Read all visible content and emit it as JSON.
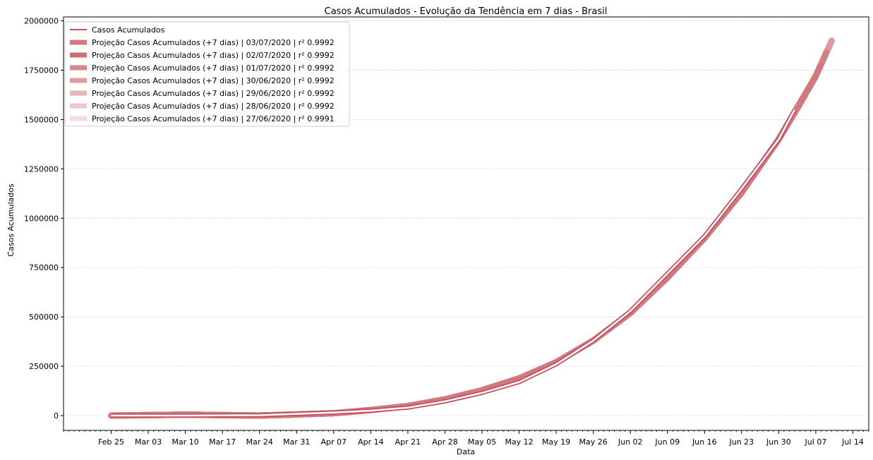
{
  "chart_data": {
    "type": "line",
    "title": "Casos Acumulados - Evolução da Tendência em 7 dias - Brasil",
    "xlabel": "Data",
    "ylabel": "Casos Acumulados",
    "xlim": [
      "2020-02-16",
      "2020-07-17"
    ],
    "ylim": [
      -75000,
      2020000
    ],
    "grid": "horizontal dashed",
    "legend_position": "top-left",
    "x_ticks": [
      "2020-02-25",
      "2020-03-03",
      "2020-03-10",
      "2020-03-17",
      "2020-03-24",
      "2020-03-31",
      "2020-04-07",
      "2020-04-14",
      "2020-04-21",
      "2020-04-28",
      "2020-05-05",
      "2020-05-12",
      "2020-05-19",
      "2020-05-26",
      "2020-06-02",
      "2020-06-09",
      "2020-06-16",
      "2020-06-23",
      "2020-06-30",
      "2020-07-07",
      "2020-07-14"
    ],
    "x_tick_labels": [
      "Feb 25",
      "Mar 03",
      "Mar 10",
      "Mar 17",
      "Mar 24",
      "Mar 31",
      "Apr 07",
      "Apr 14",
      "Apr 21",
      "Apr 28",
      "May 05",
      "May 12",
      "May 19",
      "May 26",
      "Jun 02",
      "Jun 09",
      "Jun 16",
      "Jun 23",
      "Jun 30",
      "Jul 07",
      "Jul 14"
    ],
    "y_ticks": [
      0,
      250000,
      500000,
      750000,
      1000000,
      1250000,
      1500000,
      1750000,
      2000000
    ],
    "y_tick_labels": [
      "0",
      "250000",
      "500000",
      "750000",
      "1000000",
      "1250000",
      "1500000",
      "1750000",
      "2000000"
    ],
    "series": [
      {
        "name": "Casos Acumulados",
        "color": "#c0505a",
        "x": [
          "2020-02-25",
          "2020-03-10",
          "2020-03-24",
          "2020-04-07",
          "2020-04-14",
          "2020-04-21",
          "2020-04-28",
          "2020-05-05",
          "2020-05-12",
          "2020-05-19",
          "2020-05-26",
          "2020-06-02",
          "2020-06-09",
          "2020-06-16",
          "2020-06-23",
          "2020-06-30",
          "2020-07-03"
        ],
        "values": [
          1,
          30,
          2000,
          15000,
          25000,
          40000,
          72000,
          115000,
          170000,
          260000,
          380000,
          530000,
          720000,
          910000,
          1150000,
          1400000,
          1550000
        ]
      },
      {
        "name": "Projeção Casos Acumulados (+7 dias) | 03/07/2020 | r² 0.9992",
        "color": "#d27a80",
        "x": [
          "2020-02-25",
          "2020-03-10",
          "2020-03-24",
          "2020-04-07",
          "2020-04-14",
          "2020-04-21",
          "2020-04-28",
          "2020-05-05",
          "2020-05-12",
          "2020-05-19",
          "2020-05-26",
          "2020-06-02",
          "2020-06-09",
          "2020-06-16",
          "2020-06-23",
          "2020-06-30",
          "2020-07-07",
          "2020-07-10"
        ],
        "values": [
          0,
          5000,
          0,
          12000,
          28000,
          48000,
          82000,
          128000,
          188000,
          270000,
          380000,
          520000,
          700000,
          900000,
          1130000,
          1400000,
          1720000,
          1900000
        ]
      },
      {
        "name": "Projeção Casos Acumulados (+7 dias) | 02/07/2020 | r² 0.9992",
        "color": "#cd6f76",
        "x": [
          "2020-02-25",
          "2020-03-10",
          "2020-03-24",
          "2020-04-07",
          "2020-04-14",
          "2020-04-21",
          "2020-04-28",
          "2020-05-05",
          "2020-05-12",
          "2020-05-19",
          "2020-05-26",
          "2020-06-02",
          "2020-06-09",
          "2020-06-16",
          "2020-06-23",
          "2020-06-30",
          "2020-07-07",
          "2020-07-09"
        ],
        "values": [
          0,
          5000,
          0,
          12000,
          28000,
          48000,
          82000,
          128000,
          188000,
          270000,
          380000,
          520000,
          700000,
          900000,
          1130000,
          1400000,
          1720000,
          1840000
        ]
      },
      {
        "name": "Projeção Casos Acumulados (+7 dias) | 01/07/2020 | r² 0.9992",
        "color": "#d3868b",
        "x": [
          "2020-02-25",
          "2020-03-10",
          "2020-03-24",
          "2020-04-07",
          "2020-04-14",
          "2020-04-21",
          "2020-04-28",
          "2020-05-05",
          "2020-05-12",
          "2020-05-19",
          "2020-05-26",
          "2020-06-02",
          "2020-06-09",
          "2020-06-16",
          "2020-06-23",
          "2020-06-30",
          "2020-07-07",
          "2020-07-08"
        ],
        "values": [
          0,
          5000,
          0,
          12000,
          28000,
          48000,
          82000,
          128000,
          188000,
          270000,
          380000,
          520000,
          700000,
          900000,
          1130000,
          1400000,
          1720000,
          1780000
        ]
      },
      {
        "name": "Projeção Casos Acumulados (+7 dias) | 30/06/2020 | r² 0.9992",
        "color": "#dd9fa3",
        "x": [
          "2020-02-25",
          "2020-03-10",
          "2020-03-24",
          "2020-04-07",
          "2020-04-14",
          "2020-04-21",
          "2020-04-28",
          "2020-05-05",
          "2020-05-12",
          "2020-05-19",
          "2020-05-26",
          "2020-06-02",
          "2020-06-09",
          "2020-06-16",
          "2020-06-23",
          "2020-06-30",
          "2020-07-07"
        ],
        "values": [
          0,
          5000,
          0,
          12000,
          28000,
          48000,
          82000,
          128000,
          188000,
          270000,
          380000,
          520000,
          700000,
          900000,
          1130000,
          1400000,
          1720000
        ]
      },
      {
        "name": "Projeção Casos Acumulados (+7 dias) | 29/06/2020 | r² 0.9992",
        "color": "#e5b5b8",
        "x": [
          "2020-02-25",
          "2020-03-10",
          "2020-03-24",
          "2020-04-07",
          "2020-04-14",
          "2020-04-21",
          "2020-04-28",
          "2020-05-05",
          "2020-05-12",
          "2020-05-19",
          "2020-05-26",
          "2020-06-02",
          "2020-06-09",
          "2020-06-16",
          "2020-06-23",
          "2020-06-30",
          "2020-07-06"
        ],
        "values": [
          0,
          5000,
          0,
          12000,
          28000,
          48000,
          82000,
          128000,
          188000,
          270000,
          380000,
          520000,
          700000,
          900000,
          1130000,
          1400000,
          1670000
        ]
      },
      {
        "name": "Projeção Casos Acumulados (+7 dias) | 28/06/2020 | r² 0.9992",
        "color": "#ecc9cb",
        "x": [
          "2020-02-25",
          "2020-03-10",
          "2020-03-24",
          "2020-04-07",
          "2020-04-14",
          "2020-04-21",
          "2020-04-28",
          "2020-05-05",
          "2020-05-12",
          "2020-05-19",
          "2020-05-26",
          "2020-06-02",
          "2020-06-09",
          "2020-06-16",
          "2020-06-23",
          "2020-06-30",
          "2020-07-05"
        ],
        "values": [
          0,
          5000,
          0,
          12000,
          28000,
          48000,
          82000,
          128000,
          188000,
          270000,
          380000,
          520000,
          700000,
          900000,
          1130000,
          1400000,
          1620000
        ]
      },
      {
        "name": "Projeção Casos Acumulados (+7 dias) | 27/06/2020 | r² 0.9991",
        "color": "#f2dcdd",
        "x": [
          "2020-02-25",
          "2020-03-10",
          "2020-03-24",
          "2020-04-07",
          "2020-04-14",
          "2020-04-21",
          "2020-04-28",
          "2020-05-05",
          "2020-05-12",
          "2020-05-19",
          "2020-05-26",
          "2020-06-02",
          "2020-06-09",
          "2020-06-16",
          "2020-06-23",
          "2020-06-30",
          "2020-07-04"
        ],
        "values": [
          0,
          5000,
          0,
          12000,
          28000,
          48000,
          82000,
          128000,
          188000,
          270000,
          380000,
          520000,
          700000,
          900000,
          1130000,
          1400000,
          1570000
        ]
      }
    ]
  }
}
